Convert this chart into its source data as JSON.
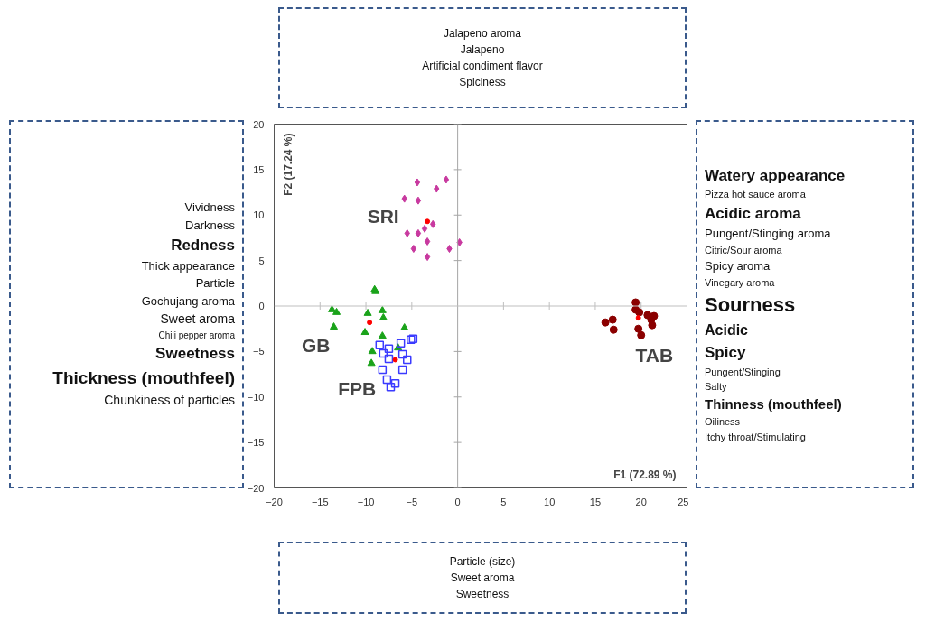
{
  "chart_data": {
    "type": "scatter",
    "xlabel": "F1 (72.89 %)",
    "ylabel": "F2 (17.24 %)",
    "xlim": [
      -20,
      25
    ],
    "ylim": [
      -20,
      20
    ],
    "xticks": [
      -20,
      -15,
      -10,
      -5,
      0,
      5,
      10,
      15,
      20,
      25
    ],
    "yticks": [
      -20,
      -15,
      -10,
      -5,
      0,
      5,
      10,
      15,
      20
    ],
    "grid": false,
    "series": [
      {
        "name": "SRI",
        "marker": "diamond",
        "color": "#c8399f",
        "x": [
          -4.4,
          -1.25,
          -2.3,
          -5.8,
          -4.3,
          -2.7,
          -3.6,
          -5.5,
          -4.3,
          -3.3,
          0.2,
          -0.9,
          -4.8,
          -3.3
        ],
        "values": [
          13.6,
          13.9,
          12.9,
          11.8,
          11.6,
          9.0,
          8.5,
          8.0,
          8.0,
          7.1,
          7.0,
          6.3,
          6.3,
          5.4
        ]
      },
      {
        "name": "GB",
        "marker": "triangle",
        "color": "#1aa31a",
        "x": [
          -9.05,
          -8.96,
          -13.7,
          -13.2,
          -9.8,
          -8.2,
          -8.1,
          -13.5,
          -5.8,
          -10.1,
          -8.2,
          -6.5,
          -9.3,
          -9.4
        ],
        "values": [
          1.8,
          1.6,
          -0.4,
          -0.7,
          -0.8,
          -0.5,
          -1.3,
          -2.3,
          -2.4,
          -2.9,
          -3.3,
          -4.6,
          -5.0,
          -6.3
        ]
      },
      {
        "name": "FPB",
        "marker": "square",
        "color": "#3b3bff",
        "x": [
          -5.1,
          -4.85,
          -6.2,
          -8.5,
          -7.5,
          -8.1,
          -6.0,
          -7.5,
          -5.5,
          -8.2,
          -6.0,
          -7.7,
          -6.8,
          -7.3
        ],
        "values": [
          -3.7,
          -3.6,
          -4.1,
          -4.3,
          -4.7,
          -5.2,
          -5.3,
          -5.8,
          -5.9,
          -7.0,
          -7.0,
          -8.1,
          -8.5,
          -8.9
        ]
      },
      {
        "name": "TAB",
        "marker": "circle",
        "color": "#8b0000",
        "x": [
          19.4,
          19.4,
          19.8,
          20.7,
          21.4,
          21.1,
          16.1,
          16.9,
          17.0,
          21.2,
          19.7,
          20.0
        ],
        "values": [
          0.4,
          -0.4,
          -0.7,
          -1.0,
          -1.1,
          -1.5,
          -1.8,
          -1.5,
          -2.6,
          -2.1,
          -2.5,
          -3.2
        ]
      },
      {
        "marker": "circle",
        "color": "#ff0000",
        "x": [
          -3.3,
          -9.6,
          -6.8,
          19.7
        ],
        "values": [
          9.3,
          -1.8,
          -5.9,
          -1.3
        ]
      }
    ],
    "ref_lines": [
      {
        "axis": "x",
        "value": 0,
        "color": "#a6a6a6"
      },
      {
        "axis": "y",
        "value": 0,
        "color": "#bfbfbf"
      }
    ],
    "annotations": [
      "Jalapeno aroma\nJalapeno\nArtificial condiment flavor\nSpiciness",
      "Vividness\nDarkness\nRedness\nThick appearance\nParticle\nGochujang aroma\nSweet aroma\nChili pepper aroma\nSweetness\nThickness (mouthfeel)\nChunkiness of particles",
      "Watery appearance\nPizza hot sauce aroma\nAcidic aroma\nPungent/Stinging aroma\nCitric/Sour aroma\nSpicy aroma\nVinegary aroma\nSourness\nAcidic\nSpicy\nPungent/Stinging\nSalty\nThinness (mouthfeel)\nOiliness\nItchy throat/Stimulating",
      "Particle (size)\nSweet aroma\nSweetness"
    ]
  }
}
